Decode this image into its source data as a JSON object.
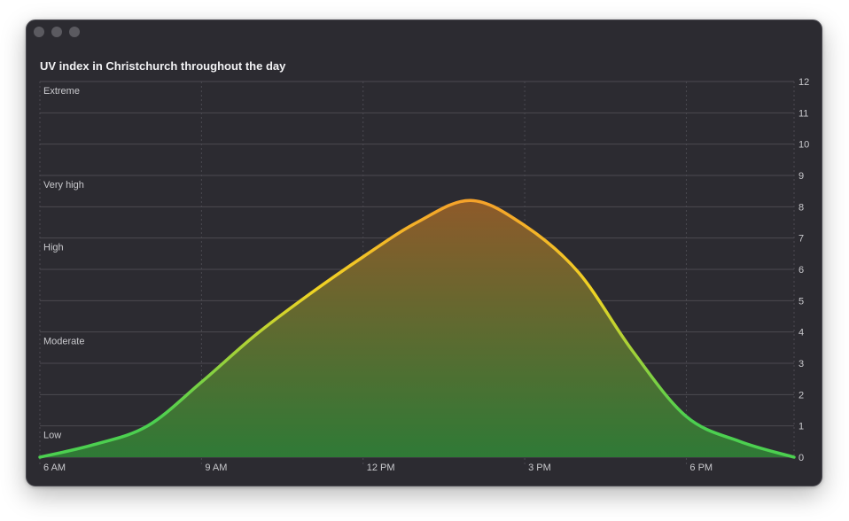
{
  "window": {
    "title": "UV index in Christchurch throughout the day",
    "controls": [
      "close",
      "minimize",
      "zoom"
    ]
  },
  "chart_data": {
    "type": "area",
    "title": "UV index in Christchurch throughout the day",
    "xlabel": "",
    "ylabel": "",
    "x_tick_labels": [
      "6 AM",
      "9 AM",
      "12 PM",
      "3 PM",
      "6 PM"
    ],
    "y_ticks": [
      0,
      1,
      2,
      3,
      4,
      5,
      6,
      7,
      8,
      9,
      10,
      11,
      12
    ],
    "ylim": [
      0,
      12
    ],
    "y_axis_position": "right",
    "grid": true,
    "x": [
      "6 AM",
      "7 AM",
      "8 AM",
      "9 AM",
      "10 AM",
      "11 AM",
      "12 PM",
      "1 PM",
      "2 PM",
      "3 PM",
      "4 PM",
      "5 PM",
      "6 PM",
      "7 PM",
      "8 PM"
    ],
    "values": [
      0,
      0.4,
      1.0,
      2.4,
      3.9,
      5.2,
      6.4,
      7.5,
      8.2,
      7.4,
      5.9,
      3.4,
      1.3,
      0.5,
      0
    ],
    "bands": [
      {
        "label": "Low",
        "from": 0,
        "to": 1
      },
      {
        "label": "Moderate",
        "from": 3,
        "to": 4
      },
      {
        "label": "High",
        "from": 6,
        "to": 7
      },
      {
        "label": "Very high",
        "from": 8,
        "to": 9
      },
      {
        "label": "Extreme",
        "from": 11,
        "to": 12
      }
    ],
    "colors": {
      "line_low": "#4cd050",
      "line_mid": "#f0d424",
      "line_high": "#f5a22a",
      "fill_low": "#2f7a36",
      "fill_high": "#8e5a2a",
      "grid": "#4b4a51",
      "label": "#c9c9cd",
      "background": "#2c2b31"
    }
  }
}
